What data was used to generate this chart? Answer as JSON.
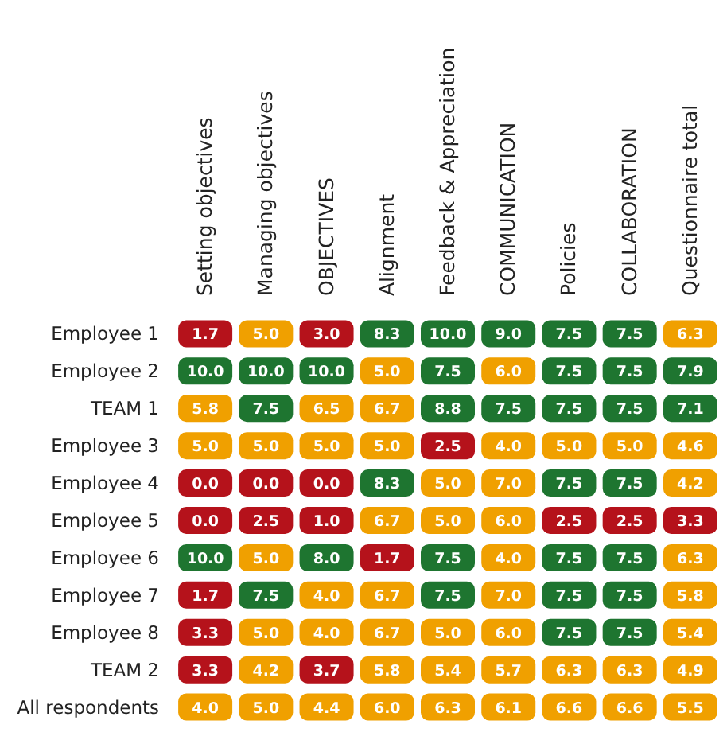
{
  "chart_data": {
    "type": "heatmap",
    "categories": [
      "Setting objectives",
      "Managing objectives",
      "OBJECTIVES",
      "Alignment",
      "Feedback & Appreciation",
      "COMMUNICATION",
      "Policies",
      "COLLABORATION",
      "Questionnaire total"
    ],
    "y_categories": [
      "Employee 1",
      "Employee 2",
      "TEAM 1",
      "Employee 3",
      "Employee 4",
      "Employee 5",
      "Employee 6",
      "Employee 7",
      "Employee 8",
      "TEAM 2",
      "All respondents"
    ],
    "cells": [
      [
        1.7,
        5.0,
        3.0,
        8.3,
        10.0,
        9.0,
        7.5,
        7.5,
        6.3
      ],
      [
        10.0,
        10.0,
        10.0,
        5.0,
        7.5,
        6.0,
        7.5,
        7.5,
        7.9
      ],
      [
        5.8,
        7.5,
        6.5,
        6.7,
        8.8,
        7.5,
        7.5,
        7.5,
        7.1
      ],
      [
        5.0,
        5.0,
        5.0,
        5.0,
        2.5,
        4.0,
        5.0,
        5.0,
        4.6
      ],
      [
        0.0,
        0.0,
        0.0,
        8.3,
        5.0,
        7.0,
        7.5,
        7.5,
        4.2
      ],
      [
        0.0,
        2.5,
        1.0,
        6.7,
        5.0,
        6.0,
        2.5,
        2.5,
        3.3
      ],
      [
        10.0,
        5.0,
        8.0,
        1.7,
        7.5,
        4.0,
        7.5,
        7.5,
        6.3
      ],
      [
        1.7,
        7.5,
        4.0,
        6.7,
        7.5,
        7.0,
        7.5,
        7.5,
        5.8
      ],
      [
        3.3,
        5.0,
        4.0,
        6.7,
        5.0,
        6.0,
        7.5,
        7.5,
        5.4
      ],
      [
        3.3,
        4.2,
        3.7,
        5.8,
        5.4,
        5.7,
        6.3,
        6.3,
        4.9
      ],
      [
        4.0,
        5.0,
        4.4,
        6.0,
        6.3,
        6.1,
        6.6,
        6.6,
        5.5
      ]
    ],
    "colors": [
      "#b5121b",
      "#f0a000",
      "#1e7530"
    ],
    "data_labels": true,
    "cell_labels": [
      [
        "1.7",
        "5.0",
        "3.0",
        "8.3",
        "10.0",
        "9.0",
        "7.5",
        "7.5",
        "6.3"
      ],
      [
        "10.0",
        "10.0",
        "10.0",
        "5.0",
        "7.5",
        "6.0",
        "7.5",
        "7.5",
        "7.9"
      ],
      [
        "5.8",
        "7.5",
        "6.5",
        "6.7",
        "8.8",
        "7.5",
        "7.5",
        "7.5",
        "7.1"
      ],
      [
        "5.0",
        "5.0",
        "5.0",
        "5.0",
        "2.5",
        "4.0",
        "5.0",
        "5.0",
        "4.6"
      ],
      [
        "0.0",
        "0.0",
        "0.0",
        "8.3",
        "5.0",
        "7.0",
        "7.5",
        "7.5",
        "4.2"
      ],
      [
        "0.0",
        "2.5",
        "1.0",
        "6.7",
        "5.0",
        "6.0",
        "2.5",
        "2.5",
        "3.3"
      ],
      [
        "10.0",
        "5.0",
        "8.0",
        "1.7",
        "7.5",
        "4.0",
        "7.5",
        "7.5",
        "6.3"
      ],
      [
        "1.7",
        "7.5",
        "4.0",
        "6.7",
        "7.5",
        "7.0",
        "7.5",
        "7.5",
        "5.8"
      ],
      [
        "3.3",
        "5.0",
        "4.0",
        "6.7",
        "5.0",
        "6.0",
        "7.5",
        "7.5",
        "5.4"
      ],
      [
        "3.3",
        "4.2",
        "3.7",
        "5.8",
        "5.4",
        "5.7",
        "6.3",
        "6.3",
        "4.9"
      ],
      [
        "4.0",
        "5.0",
        "4.4",
        "6.0",
        "6.3",
        "6.1",
        "6.6",
        "6.6",
        "5.5"
      ]
    ]
  }
}
